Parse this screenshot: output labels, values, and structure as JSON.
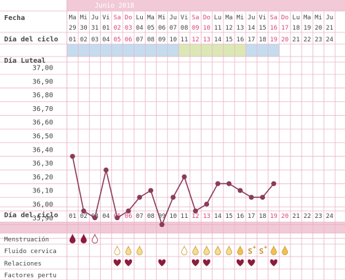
{
  "title": "Junio 2018",
  "labels": {
    "fecha": "Fecha",
    "dia_ciclo": "Día del ciclo",
    "dia_luteal": "Día Luteal",
    "menstruacion": "Menstruación",
    "fluido": "Fluido cervica",
    "relaciones": "Relaciones",
    "factores": "Factores pertu"
  },
  "days": [
    {
      "wd": "Ma",
      "d": "29",
      "c": "01",
      "we": false
    },
    {
      "wd": "Mi",
      "d": "30",
      "c": "02",
      "we": false
    },
    {
      "wd": "Ju",
      "d": "31",
      "c": "03",
      "we": false
    },
    {
      "wd": "Vi",
      "d": "01",
      "c": "04",
      "we": false
    },
    {
      "wd": "Sa",
      "d": "02",
      "c": "05",
      "we": true
    },
    {
      "wd": "Do",
      "d": "03",
      "c": "06",
      "we": true
    },
    {
      "wd": "Lu",
      "d": "04",
      "c": "07",
      "we": false
    },
    {
      "wd": "Ma",
      "d": "05",
      "c": "08",
      "we": false
    },
    {
      "wd": "Mi",
      "d": "06",
      "c": "09",
      "we": false
    },
    {
      "wd": "Ju",
      "d": "07",
      "c": "10",
      "we": false
    },
    {
      "wd": "Vi",
      "d": "08",
      "c": "11",
      "we": false
    },
    {
      "wd": "Sa",
      "d": "09",
      "c": "12",
      "we": true
    },
    {
      "wd": "Do",
      "d": "10",
      "c": "13",
      "we": true
    },
    {
      "wd": "Lu",
      "d": "11",
      "c": "14",
      "we": false
    },
    {
      "wd": "Ma",
      "d": "12",
      "c": "15",
      "we": false
    },
    {
      "wd": "Mi",
      "d": "13",
      "c": "16",
      "we": false
    },
    {
      "wd": "Ju",
      "d": "14",
      "c": "17",
      "we": false
    },
    {
      "wd": "Vi",
      "d": "15",
      "c": "18",
      "we": false
    },
    {
      "wd": "Sa",
      "d": "16",
      "c": "19",
      "we": true
    },
    {
      "wd": "Do",
      "d": "17",
      "c": "20",
      "we": true
    },
    {
      "wd": "Lu",
      "d": "18",
      "c": "21",
      "we": false
    },
    {
      "wd": "Ma",
      "d": "19",
      "c": "22",
      "we": false
    },
    {
      "wd": "Mi",
      "d": "20",
      "c": "23",
      "we": false
    },
    {
      "wd": "Ju",
      "d": "21",
      "c": "24",
      "we": false
    }
  ],
  "colors": {
    "header_bg": "#f2c9d6",
    "title_text": "#ffffff",
    "weekend_text": "#d9467a",
    "grid": "#e8b4c6",
    "line": "#8a3a5a",
    "blue_band": "#c5dcef",
    "green_band": "#dbe8b6",
    "heart": "#8b1c3c",
    "drop": "#f0c050",
    "drop_light": "#f6dc94"
  },
  "chart_data": {
    "type": "line",
    "x": [
      "01",
      "02",
      "03",
      "04",
      "05",
      "06",
      "07",
      "08",
      "09",
      "10",
      "11",
      "12",
      "13",
      "14",
      "15",
      "16",
      "17",
      "18",
      "19"
    ],
    "series": [
      {
        "values": [
          36.35,
          35.95,
          35.9,
          36.25,
          35.9,
          35.95,
          36.05,
          36.1,
          35.85,
          36.05,
          36.2,
          35.95,
          36.0,
          36.15,
          36.15,
          36.1,
          36.05,
          36.05,
          36.15
        ]
      }
    ],
    "y_ticks": [
      "37,00",
      "36,90",
      "36,80",
      "36,70",
      "36,60",
      "36,50",
      "36,40",
      "36,30",
      "36,20",
      "36,10",
      "36,00",
      "35,90"
    ],
    "ylim": [
      35.8,
      37.05
    ],
    "grid": true
  },
  "bands": {
    "blue": [
      "01",
      "02",
      "03",
      "04",
      "05",
      "06",
      "07",
      "08",
      "09",
      "10",
      "17",
      "18",
      "19"
    ],
    "green": [
      "11",
      "12",
      "13",
      "14",
      "15",
      "16"
    ]
  },
  "markers": {
    "menstruacion": [
      {
        "c": "01",
        "kind": "drop-dark"
      },
      {
        "c": "02",
        "kind": "drop-dark"
      },
      {
        "c": "03",
        "kind": "drop-outline"
      }
    ],
    "fluido": [
      {
        "c": "05",
        "kind": "drop-outline"
      },
      {
        "c": "06",
        "kind": "drop-light"
      },
      {
        "c": "07",
        "kind": "drop-light"
      },
      {
        "c": "11",
        "kind": "drop-outline"
      },
      {
        "c": "12",
        "kind": "drop-light"
      },
      {
        "c": "13",
        "kind": "drop-light"
      },
      {
        "c": "14",
        "kind": "drop-light"
      },
      {
        "c": "15",
        "kind": "drop-light"
      },
      {
        "c": "16",
        "kind": "drop-gold"
      },
      {
        "c": "17",
        "kind": "s-plus",
        "text": "S+"
      },
      {
        "c": "18",
        "kind": "s-plus",
        "text": "S+"
      },
      {
        "c": "19",
        "kind": "drop-gold"
      },
      {
        "c": "20",
        "kind": "drop-gold"
      }
    ],
    "relaciones": [
      "05",
      "06",
      "09",
      "12",
      "13",
      "16",
      "17",
      "19"
    ]
  }
}
